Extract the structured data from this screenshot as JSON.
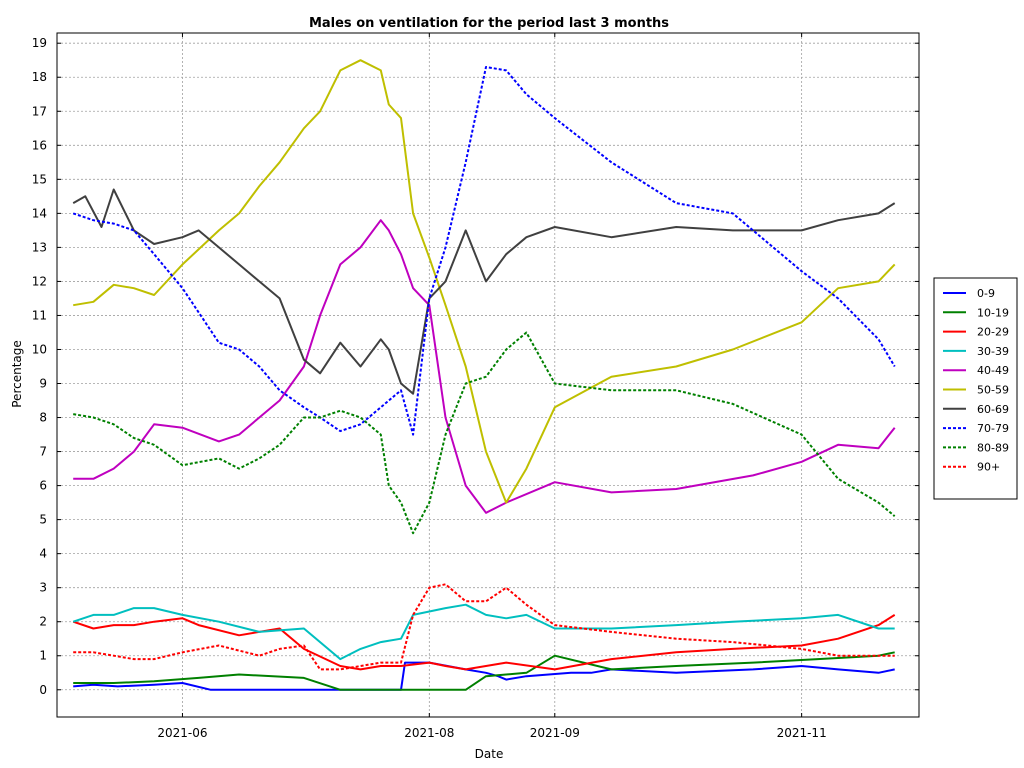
{
  "chart_data": {
    "type": "line",
    "title": "Males on ventilation for the period last 3 months",
    "xlabel": "Date",
    "ylabel": "Percentage",
    "xlim": [
      "2021-05-01",
      "2021-11-30"
    ],
    "ylim": [
      -0.8,
      19.3
    ],
    "x_ticks": [
      "2021-06",
      "2021-08",
      "2021-09",
      "2021-11"
    ],
    "y_ticks": [
      0,
      1,
      2,
      3,
      4,
      5,
      6,
      7,
      8,
      9,
      10,
      11,
      12,
      13,
      14,
      15,
      16,
      17,
      18,
      19
    ],
    "grid": true,
    "legend_position": "right",
    "series": [
      {
        "name": "0-9",
        "color": "#0000ff",
        "dash": "solid",
        "x": [
          "2021-05-05",
          "2021-05-10",
          "2021-05-16",
          "2021-05-25",
          "2021-06-01",
          "2021-06-08",
          "2021-06-20",
          "2021-07-10",
          "2021-07-25",
          "2021-07-26",
          "2021-08-01",
          "2021-08-10",
          "2021-08-15",
          "2021-08-18",
          "2021-08-20",
          "2021-08-25",
          "2021-09-05",
          "2021-09-10",
          "2021-09-15",
          "2021-10-01",
          "2021-10-20",
          "2021-11-01",
          "2021-11-10",
          "2021-11-20",
          "2021-11-24"
        ],
        "y": [
          0.1,
          0.15,
          0.1,
          0.15,
          0.2,
          0.0,
          0.0,
          0.0,
          0.0,
          0.8,
          0.8,
          0.6,
          0.5,
          0.4,
          0.3,
          0.4,
          0.5,
          0.5,
          0.6,
          0.5,
          0.6,
          0.7,
          0.6,
          0.5,
          0.6
        ]
      },
      {
        "name": "10-19",
        "color": "#008000",
        "dash": "solid",
        "x": [
          "2021-05-05",
          "2021-05-15",
          "2021-05-25",
          "2021-06-05",
          "2021-06-15",
          "2021-07-01",
          "2021-07-10",
          "2021-07-20",
          "2021-08-01",
          "2021-08-10",
          "2021-08-15",
          "2021-08-25",
          "2021-09-01",
          "2021-09-15",
          "2021-10-01",
          "2021-10-20",
          "2021-11-05",
          "2021-11-20",
          "2021-11-24"
        ],
        "y": [
          0.2,
          0.2,
          0.25,
          0.35,
          0.45,
          0.35,
          0.0,
          0.0,
          0.0,
          0.0,
          0.4,
          0.5,
          1.0,
          0.6,
          0.7,
          0.8,
          0.9,
          1.0,
          1.1
        ]
      },
      {
        "name": "20-29",
        "color": "#ff0000",
        "dash": "solid",
        "x": [
          "2021-05-05",
          "2021-05-10",
          "2021-05-15",
          "2021-05-20",
          "2021-05-25",
          "2021-06-01",
          "2021-06-05",
          "2021-06-15",
          "2021-06-25",
          "2021-07-01",
          "2021-07-10",
          "2021-07-15",
          "2021-07-20",
          "2021-07-25",
          "2021-08-01",
          "2021-08-05",
          "2021-08-10",
          "2021-08-20",
          "2021-09-01",
          "2021-09-15",
          "2021-10-01",
          "2021-10-15",
          "2021-11-01",
          "2021-11-10",
          "2021-11-20",
          "2021-11-24"
        ],
        "y": [
          2.0,
          1.8,
          1.9,
          1.9,
          2.0,
          2.1,
          1.9,
          1.6,
          1.8,
          1.2,
          0.7,
          0.6,
          0.7,
          0.7,
          0.8,
          0.7,
          0.6,
          0.8,
          0.6,
          0.9,
          1.1,
          1.2,
          1.3,
          1.5,
          1.9,
          2.2
        ]
      },
      {
        "name": "30-39",
        "color": "#00bfbf",
        "dash": "solid",
        "x": [
          "2021-05-05",
          "2021-05-10",
          "2021-05-15",
          "2021-05-20",
          "2021-05-25",
          "2021-06-01",
          "2021-06-10",
          "2021-06-20",
          "2021-07-01",
          "2021-07-10",
          "2021-07-15",
          "2021-07-20",
          "2021-07-25",
          "2021-07-28",
          "2021-08-05",
          "2021-08-10",
          "2021-08-15",
          "2021-08-20",
          "2021-08-25",
          "2021-09-01",
          "2021-09-15",
          "2021-10-01",
          "2021-10-15",
          "2021-11-01",
          "2021-11-10",
          "2021-11-20",
          "2021-11-24"
        ],
        "y": [
          2.0,
          2.2,
          2.2,
          2.4,
          2.4,
          2.2,
          2.0,
          1.7,
          1.8,
          0.9,
          1.2,
          1.4,
          1.5,
          2.2,
          2.4,
          2.5,
          2.2,
          2.1,
          2.2,
          1.8,
          1.8,
          1.9,
          2.0,
          2.1,
          2.2,
          1.8,
          1.8
        ]
      },
      {
        "name": "40-49",
        "color": "#bf00bf",
        "dash": "solid",
        "x": [
          "2021-05-05",
          "2021-05-10",
          "2021-05-15",
          "2021-05-20",
          "2021-05-25",
          "2021-06-01",
          "2021-06-10",
          "2021-06-15",
          "2021-06-20",
          "2021-06-25",
          "2021-07-01",
          "2021-07-05",
          "2021-07-10",
          "2021-07-15",
          "2021-07-20",
          "2021-07-22",
          "2021-07-25",
          "2021-07-28",
          "2021-08-01",
          "2021-08-05",
          "2021-08-10",
          "2021-08-15",
          "2021-08-20",
          "2021-09-01",
          "2021-09-15",
          "2021-10-01",
          "2021-10-20",
          "2021-11-01",
          "2021-11-10",
          "2021-11-20",
          "2021-11-24"
        ],
        "y": [
          6.2,
          6.2,
          6.5,
          7.0,
          7.8,
          7.7,
          7.3,
          7.5,
          8.0,
          8.5,
          9.5,
          11.0,
          12.5,
          13.0,
          13.8,
          13.5,
          12.8,
          11.8,
          11.3,
          8.0,
          6.0,
          5.2,
          5.5,
          6.1,
          5.8,
          5.9,
          6.3,
          6.7,
          7.2,
          7.1,
          7.7
        ]
      },
      {
        "name": "50-59",
        "color": "#bfbf00",
        "dash": "solid",
        "x": [
          "2021-05-05",
          "2021-05-10",
          "2021-05-15",
          "2021-05-20",
          "2021-05-25",
          "2021-06-01",
          "2021-06-10",
          "2021-06-15",
          "2021-06-20",
          "2021-06-25",
          "2021-07-01",
          "2021-07-05",
          "2021-07-10",
          "2021-07-15",
          "2021-07-20",
          "2021-07-22",
          "2021-07-25",
          "2021-07-28",
          "2021-08-01",
          "2021-08-05",
          "2021-08-10",
          "2021-08-15",
          "2021-08-20",
          "2021-08-25",
          "2021-09-01",
          "2021-09-15",
          "2021-10-01",
          "2021-10-15",
          "2021-11-01",
          "2021-11-10",
          "2021-11-20",
          "2021-11-24"
        ],
        "y": [
          11.3,
          11.4,
          11.9,
          11.8,
          11.6,
          12.5,
          13.5,
          14.0,
          14.8,
          15.5,
          16.5,
          17.0,
          18.2,
          18.5,
          18.2,
          17.2,
          16.8,
          14.0,
          12.7,
          11.3,
          9.5,
          7.0,
          5.5,
          6.5,
          8.3,
          9.2,
          9.5,
          10.0,
          10.8,
          11.8,
          12.0,
          12.5
        ]
      },
      {
        "name": "60-69",
        "color": "#404040",
        "dash": "solid",
        "x": [
          "2021-05-05",
          "2021-05-08",
          "2021-05-12",
          "2021-05-15",
          "2021-05-20",
          "2021-05-25",
          "2021-06-01",
          "2021-06-05",
          "2021-06-10",
          "2021-06-15",
          "2021-06-20",
          "2021-06-25",
          "2021-07-01",
          "2021-07-05",
          "2021-07-10",
          "2021-07-15",
          "2021-07-20",
          "2021-07-22",
          "2021-07-25",
          "2021-07-28",
          "2021-08-01",
          "2021-08-05",
          "2021-08-10",
          "2021-08-15",
          "2021-08-20",
          "2021-08-25",
          "2021-09-01",
          "2021-09-15",
          "2021-10-01",
          "2021-10-15",
          "2021-11-01",
          "2021-11-10",
          "2021-11-20",
          "2021-11-24"
        ],
        "y": [
          14.3,
          14.5,
          13.6,
          14.7,
          13.5,
          13.1,
          13.3,
          13.5,
          13.0,
          12.5,
          12.0,
          11.5,
          9.7,
          9.3,
          10.2,
          9.5,
          10.3,
          10.0,
          9.0,
          8.7,
          11.5,
          12.0,
          13.5,
          12.0,
          12.8,
          13.3,
          13.6,
          13.3,
          13.6,
          13.5,
          13.5,
          13.8,
          14.0,
          14.3
        ]
      },
      {
        "name": "70-79",
        "color": "#0000ff",
        "dash": "dotted",
        "x": [
          "2021-05-05",
          "2021-05-10",
          "2021-05-15",
          "2021-05-20",
          "2021-05-25",
          "2021-06-01",
          "2021-06-10",
          "2021-06-15",
          "2021-06-20",
          "2021-06-25",
          "2021-07-01",
          "2021-07-05",
          "2021-07-10",
          "2021-07-15",
          "2021-07-20",
          "2021-07-22",
          "2021-07-25",
          "2021-07-28",
          "2021-08-01",
          "2021-08-05",
          "2021-08-10",
          "2021-08-15",
          "2021-08-20",
          "2021-08-25",
          "2021-09-01",
          "2021-09-15",
          "2021-10-01",
          "2021-10-15",
          "2021-11-01",
          "2021-11-10",
          "2021-11-20",
          "2021-11-24"
        ],
        "y": [
          14.0,
          13.8,
          13.7,
          13.5,
          12.8,
          11.8,
          10.2,
          10.0,
          9.5,
          8.8,
          8.3,
          8.0,
          7.6,
          7.8,
          8.3,
          8.5,
          8.8,
          7.5,
          11.5,
          13.0,
          15.5,
          18.3,
          18.2,
          17.5,
          16.8,
          15.5,
          14.3,
          14.0,
          12.3,
          11.5,
          10.3,
          9.5
        ]
      },
      {
        "name": "80-89",
        "color": "#008000",
        "dash": "dotted",
        "x": [
          "2021-05-05",
          "2021-05-10",
          "2021-05-15",
          "2021-05-20",
          "2021-05-25",
          "2021-06-01",
          "2021-06-10",
          "2021-06-15",
          "2021-06-20",
          "2021-06-25",
          "2021-07-01",
          "2021-07-05",
          "2021-07-10",
          "2021-07-15",
          "2021-07-20",
          "2021-07-22",
          "2021-07-25",
          "2021-07-28",
          "2021-08-01",
          "2021-08-05",
          "2021-08-10",
          "2021-08-15",
          "2021-08-20",
          "2021-08-25",
          "2021-09-01",
          "2021-09-15",
          "2021-10-01",
          "2021-10-15",
          "2021-11-01",
          "2021-11-10",
          "2021-11-20",
          "2021-11-24"
        ],
        "y": [
          8.1,
          8.0,
          7.8,
          7.4,
          7.2,
          6.6,
          6.8,
          6.5,
          6.8,
          7.2,
          8.0,
          8.0,
          8.2,
          8.0,
          7.5,
          6.0,
          5.5,
          4.6,
          5.5,
          7.5,
          9.0,
          9.2,
          10.0,
          10.5,
          9.0,
          8.8,
          8.8,
          8.4,
          7.5,
          6.2,
          5.5,
          5.1
        ]
      },
      {
        "name": "90+",
        "color": "#ff0000",
        "dash": "dotted",
        "x": [
          "2021-05-05",
          "2021-05-10",
          "2021-05-15",
          "2021-05-20",
          "2021-05-25",
          "2021-06-01",
          "2021-06-10",
          "2021-06-20",
          "2021-06-25",
          "2021-07-01",
          "2021-07-05",
          "2021-07-10",
          "2021-07-15",
          "2021-07-20",
          "2021-07-25",
          "2021-07-28",
          "2021-08-01",
          "2021-08-05",
          "2021-08-10",
          "2021-08-15",
          "2021-08-20",
          "2021-08-25",
          "2021-09-01",
          "2021-09-15",
          "2021-10-01",
          "2021-10-15",
          "2021-11-01",
          "2021-11-10",
          "2021-11-20",
          "2021-11-24"
        ],
        "y": [
          1.1,
          1.1,
          1.0,
          0.9,
          0.9,
          1.1,
          1.3,
          1.0,
          1.2,
          1.3,
          0.6,
          0.6,
          0.7,
          0.8,
          0.8,
          2.2,
          3.0,
          3.1,
          2.6,
          2.6,
          3.0,
          2.5,
          1.9,
          1.7,
          1.5,
          1.4,
          1.2,
          1.0,
          1.0,
          1.0
        ]
      }
    ]
  }
}
